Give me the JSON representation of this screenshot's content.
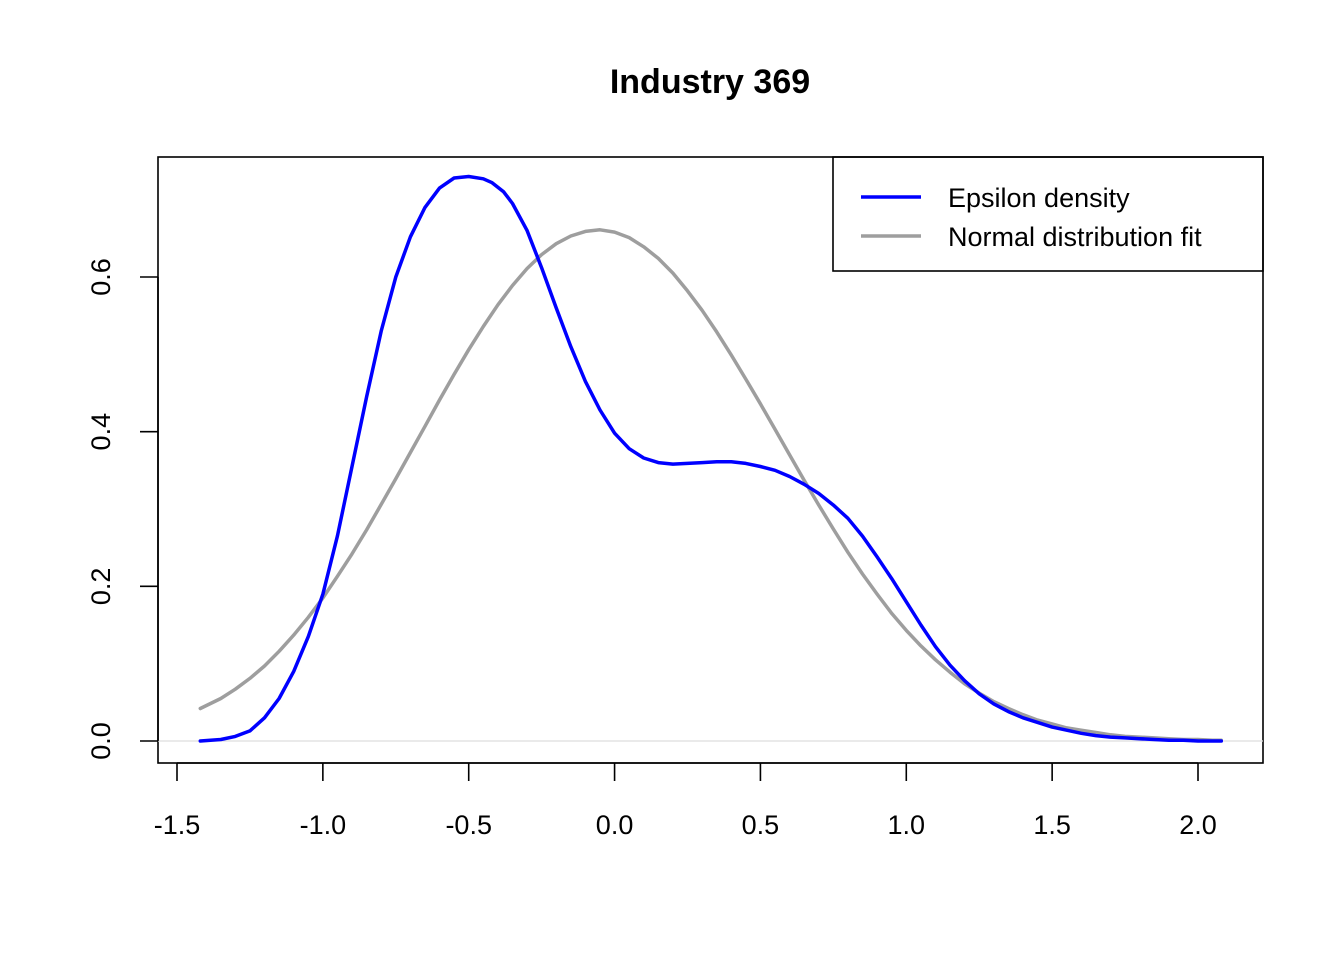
{
  "chart_data": {
    "type": "line",
    "title": "Industry 369",
    "xlabel": "",
    "ylabel": "",
    "xlim": [
      -1.5,
      2.1
    ],
    "ylim": [
      0,
      0.73
    ],
    "x_ticks": [
      "-1.5",
      "-1.0",
      "-0.5",
      "0.0",
      "0.5",
      "1.0",
      "1.5",
      "2.0"
    ],
    "y_ticks": [
      "0.0",
      "0.2",
      "0.4",
      "0.6"
    ],
    "legend_position": "top-right",
    "baseline": {
      "y": 0,
      "color": "#dddddd"
    },
    "series": [
      {
        "name": "Epsilon density",
        "color": "#0000ff",
        "x": [
          -1.42,
          -1.35,
          -1.3,
          -1.25,
          -1.2,
          -1.15,
          -1.1,
          -1.05,
          -1.0,
          -0.95,
          -0.9,
          -0.85,
          -0.8,
          -0.75,
          -0.7,
          -0.65,
          -0.6,
          -0.55,
          -0.5,
          -0.45,
          -0.42,
          -0.38,
          -0.35,
          -0.3,
          -0.25,
          -0.2,
          -0.15,
          -0.1,
          -0.05,
          0.0,
          0.05,
          0.1,
          0.15,
          0.2,
          0.25,
          0.3,
          0.35,
          0.4,
          0.45,
          0.5,
          0.55,
          0.6,
          0.65,
          0.7,
          0.75,
          0.8,
          0.85,
          0.9,
          0.95,
          1.0,
          1.05,
          1.1,
          1.15,
          1.2,
          1.25,
          1.3,
          1.35,
          1.4,
          1.45,
          1.5,
          1.55,
          1.6,
          1.65,
          1.7,
          1.75,
          1.8,
          1.85,
          1.9,
          1.95,
          2.0,
          2.05,
          2.08
        ],
        "y": [
          0.0,
          0.002,
          0.006,
          0.013,
          0.03,
          0.055,
          0.09,
          0.135,
          0.19,
          0.265,
          0.355,
          0.445,
          0.53,
          0.6,
          0.652,
          0.69,
          0.715,
          0.728,
          0.73,
          0.727,
          0.722,
          0.71,
          0.695,
          0.66,
          0.612,
          0.56,
          0.51,
          0.465,
          0.428,
          0.398,
          0.378,
          0.366,
          0.36,
          0.358,
          0.359,
          0.36,
          0.361,
          0.361,
          0.359,
          0.355,
          0.35,
          0.342,
          0.332,
          0.32,
          0.305,
          0.288,
          0.265,
          0.238,
          0.21,
          0.18,
          0.15,
          0.122,
          0.098,
          0.078,
          0.061,
          0.048,
          0.038,
          0.03,
          0.024,
          0.018,
          0.014,
          0.01,
          0.007,
          0.005,
          0.004,
          0.003,
          0.002,
          0.001,
          0.001,
          0.0,
          0.0,
          0.0
        ]
      },
      {
        "name": "Normal distribution fit",
        "color": "#9e9e9e",
        "x": [
          -1.42,
          -1.35,
          -1.3,
          -1.25,
          -1.2,
          -1.15,
          -1.1,
          -1.05,
          -1.0,
          -0.95,
          -0.9,
          -0.85,
          -0.8,
          -0.75,
          -0.7,
          -0.65,
          -0.6,
          -0.55,
          -0.5,
          -0.45,
          -0.4,
          -0.35,
          -0.3,
          -0.25,
          -0.2,
          -0.15,
          -0.1,
          -0.05,
          0.0,
          0.05,
          0.1,
          0.15,
          0.2,
          0.25,
          0.3,
          0.35,
          0.4,
          0.45,
          0.5,
          0.55,
          0.6,
          0.65,
          0.7,
          0.75,
          0.8,
          0.85,
          0.9,
          0.95,
          1.0,
          1.05,
          1.1,
          1.15,
          1.2,
          1.25,
          1.3,
          1.35,
          1.4,
          1.45,
          1.5,
          1.55,
          1.6,
          1.65,
          1.7,
          1.75,
          1.8,
          1.85,
          1.9,
          1.95,
          2.0,
          2.05,
          2.08
        ],
        "y": [
          0.042,
          0.055,
          0.067,
          0.081,
          0.097,
          0.116,
          0.137,
          0.16,
          0.185,
          0.213,
          0.242,
          0.273,
          0.306,
          0.339,
          0.373,
          0.407,
          0.441,
          0.474,
          0.506,
          0.536,
          0.564,
          0.589,
          0.611,
          0.629,
          0.643,
          0.653,
          0.659,
          0.661,
          0.658,
          0.651,
          0.639,
          0.624,
          0.605,
          0.582,
          0.557,
          0.529,
          0.499,
          0.468,
          0.436,
          0.403,
          0.37,
          0.337,
          0.305,
          0.274,
          0.244,
          0.216,
          0.19,
          0.165,
          0.143,
          0.123,
          0.105,
          0.089,
          0.074,
          0.062,
          0.051,
          0.042,
          0.034,
          0.027,
          0.022,
          0.017,
          0.014,
          0.011,
          0.008,
          0.006,
          0.005,
          0.004,
          0.003,
          0.002,
          0.002,
          0.001,
          0.001
        ]
      }
    ]
  }
}
